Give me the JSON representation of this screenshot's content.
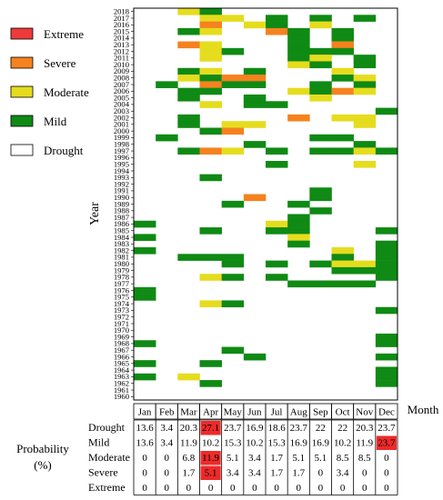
{
  "chart_data": {
    "type": "heatmap",
    "title": "",
    "xlabel": "Month",
    "ylabel": "Year",
    "months": [
      "Jan",
      "Feb",
      "Mar",
      "Apr",
      "May",
      "Jun",
      "Jul",
      "Aug",
      "Sep",
      "Oct",
      "Nov",
      "Dec"
    ],
    "year_range": [
      1960,
      2018
    ],
    "legend": [
      {
        "label": "Extreme",
        "color": "#ee3a3a"
      },
      {
        "label": "Severe",
        "color": "#f5821f"
      },
      {
        "label": "Moderate",
        "color": "#e6dc1e"
      },
      {
        "label": "Mild",
        "color": "#0f8a14"
      },
      {
        "label": "Drought",
        "color": "#ffffff"
      }
    ],
    "events": [
      {
        "year": 2018,
        "month": "Mar",
        "category": "Moderate"
      },
      {
        "year": 2018,
        "month": "Apr",
        "category": "Mild"
      },
      {
        "year": 2017,
        "month": "Apr",
        "category": "Moderate"
      },
      {
        "year": 2017,
        "month": "May",
        "category": "Moderate"
      },
      {
        "year": 2017,
        "month": "Jul",
        "category": "Mild"
      },
      {
        "year": 2017,
        "month": "Sep",
        "category": "Mild"
      },
      {
        "year": 2017,
        "month": "Nov",
        "category": "Mild"
      },
      {
        "year": 2016,
        "month": "Apr",
        "category": "Severe"
      },
      {
        "year": 2016,
        "month": "Jun",
        "category": "Moderate"
      },
      {
        "year": 2016,
        "month": "Jul",
        "category": "Mild"
      },
      {
        "year": 2016,
        "month": "Sep",
        "category": "Moderate"
      },
      {
        "year": 2015,
        "month": "Mar",
        "category": "Mild"
      },
      {
        "year": 2015,
        "month": "Apr",
        "category": "Moderate"
      },
      {
        "year": 2015,
        "month": "Jul",
        "category": "Severe"
      },
      {
        "year": 2015,
        "month": "Aug",
        "category": "Mild"
      },
      {
        "year": 2015,
        "month": "Oct",
        "category": "Mild"
      },
      {
        "year": 2014,
        "month": "Aug",
        "category": "Mild"
      },
      {
        "year": 2014,
        "month": "Oct",
        "category": "Mild"
      },
      {
        "year": 2013,
        "month": "Mar",
        "category": "Severe"
      },
      {
        "year": 2013,
        "month": "Apr",
        "category": "Moderate"
      },
      {
        "year": 2013,
        "month": "Aug",
        "category": "Mild"
      },
      {
        "year": 2013,
        "month": "Oct",
        "category": "Severe"
      },
      {
        "year": 2012,
        "month": "Apr",
        "category": "Moderate"
      },
      {
        "year": 2012,
        "month": "May",
        "category": "Mild"
      },
      {
        "year": 2012,
        "month": "Aug",
        "category": "Mild"
      },
      {
        "year": 2012,
        "month": "Sep",
        "category": "Mild"
      },
      {
        "year": 2012,
        "month": "Oct",
        "category": "Mild"
      },
      {
        "year": 2011,
        "month": "Apr",
        "category": "Moderate"
      },
      {
        "year": 2011,
        "month": "Aug",
        "category": "Mild"
      },
      {
        "year": 2011,
        "month": "Sep",
        "category": "Moderate"
      },
      {
        "year": 2011,
        "month": "Nov",
        "category": "Mild"
      },
      {
        "year": 2010,
        "month": "Aug",
        "category": "Moderate"
      },
      {
        "year": 2010,
        "month": "Sep",
        "category": "Mild"
      },
      {
        "year": 2010,
        "month": "Nov",
        "category": "Mild"
      },
      {
        "year": 2009,
        "month": "Mar",
        "category": "Mild"
      },
      {
        "year": 2009,
        "month": "Apr",
        "category": "Moderate"
      },
      {
        "year": 2009,
        "month": "Jun",
        "category": "Mild"
      },
      {
        "year": 2009,
        "month": "Oct",
        "category": "Moderate"
      },
      {
        "year": 2008,
        "month": "Mar",
        "category": "Moderate"
      },
      {
        "year": 2008,
        "month": "Apr",
        "category": "Mild"
      },
      {
        "year": 2008,
        "month": "May",
        "category": "Severe"
      },
      {
        "year": 2008,
        "month": "Jun",
        "category": "Severe"
      },
      {
        "year": 2008,
        "month": "Oct",
        "category": "Mild"
      },
      {
        "year": 2008,
        "month": "Nov",
        "category": "Moderate"
      },
      {
        "year": 2007,
        "month": "Feb",
        "category": "Mild"
      },
      {
        "year": 2007,
        "month": "Apr",
        "category": "Severe"
      },
      {
        "year": 2007,
        "month": "May",
        "category": "Mild"
      },
      {
        "year": 2007,
        "month": "Jun",
        "category": "Mild"
      },
      {
        "year": 2007,
        "month": "Sep",
        "category": "Mild"
      },
      {
        "year": 2007,
        "month": "Nov",
        "category": "Mild"
      },
      {
        "year": 2006,
        "month": "Mar",
        "category": "Mild"
      },
      {
        "year": 2006,
        "month": "Apr",
        "category": "Mild"
      },
      {
        "year": 2006,
        "month": "Aug",
        "category": "Moderate"
      },
      {
        "year": 2006,
        "month": "Sep",
        "category": "Mild"
      },
      {
        "year": 2006,
        "month": "Oct",
        "category": "Severe"
      },
      {
        "year": 2006,
        "month": "Nov",
        "category": "Moderate"
      },
      {
        "year": 2005,
        "month": "Mar",
        "category": "Mild"
      },
      {
        "year": 2005,
        "month": "Jun",
        "category": "Mild"
      },
      {
        "year": 2005,
        "month": "Sep",
        "category": "Moderate"
      },
      {
        "year": 2004,
        "month": "Apr",
        "category": "Moderate"
      },
      {
        "year": 2004,
        "month": "Jun",
        "category": "Mild"
      },
      {
        "year": 2004,
        "month": "Jul",
        "category": "Mild"
      },
      {
        "year": 2003,
        "month": "Dec",
        "category": "Mild"
      },
      {
        "year": 2002,
        "month": "Mar",
        "category": "Mild"
      },
      {
        "year": 2002,
        "month": "Aug",
        "category": "Severe"
      },
      {
        "year": 2002,
        "month": "Oct",
        "category": "Moderate"
      },
      {
        "year": 2002,
        "month": "Nov",
        "category": "Moderate"
      },
      {
        "year": 2001,
        "month": "Mar",
        "category": "Mild"
      },
      {
        "year": 2001,
        "month": "May",
        "category": "Moderate"
      },
      {
        "year": 2001,
        "month": "Jun",
        "category": "Moderate"
      },
      {
        "year": 2001,
        "month": "Nov",
        "category": "Moderate"
      },
      {
        "year": 2000,
        "month": "Apr",
        "category": "Mild"
      },
      {
        "year": 2000,
        "month": "May",
        "category": "Severe"
      },
      {
        "year": 1999,
        "month": "Feb",
        "category": "Mild"
      },
      {
        "year": 1999,
        "month": "Sep",
        "category": "Mild"
      },
      {
        "year": 1999,
        "month": "Oct",
        "category": "Mild"
      },
      {
        "year": 1998,
        "month": "Jun",
        "category": "Mild"
      },
      {
        "year": 1998,
        "month": "Nov",
        "category": "Mild"
      },
      {
        "year": 1997,
        "month": "Mar",
        "category": "Mild"
      },
      {
        "year": 1997,
        "month": "Apr",
        "category": "Severe"
      },
      {
        "year": 1997,
        "month": "May",
        "category": "Moderate"
      },
      {
        "year": 1997,
        "month": "Jul",
        "category": "Mild"
      },
      {
        "year": 1997,
        "month": "Sep",
        "category": "Mild"
      },
      {
        "year": 1997,
        "month": "Oct",
        "category": "Mild"
      },
      {
        "year": 1997,
        "month": "Nov",
        "category": "Moderate"
      },
      {
        "year": 1997,
        "month": "Dec",
        "category": "Mild"
      },
      {
        "year": 1995,
        "month": "Jul",
        "category": "Mild"
      },
      {
        "year": 1995,
        "month": "Nov",
        "category": "Moderate"
      },
      {
        "year": 1993,
        "month": "Apr",
        "category": "Mild"
      },
      {
        "year": 1991,
        "month": "Sep",
        "category": "Mild"
      },
      {
        "year": 1990,
        "month": "Jun",
        "category": "Severe"
      },
      {
        "year": 1990,
        "month": "Sep",
        "category": "Mild"
      },
      {
        "year": 1989,
        "month": "May",
        "category": "Mild"
      },
      {
        "year": 1989,
        "month": "Aug",
        "category": "Mild"
      },
      {
        "year": 1988,
        "month": "Sep",
        "category": "Mild"
      },
      {
        "year": 1987,
        "month": "Aug",
        "category": "Mild"
      },
      {
        "year": 1986,
        "month": "Jan",
        "category": "Mild"
      },
      {
        "year": 1986,
        "month": "Jul",
        "category": "Moderate"
      },
      {
        "year": 1986,
        "month": "Aug",
        "category": "Mild"
      },
      {
        "year": 1985,
        "month": "Apr",
        "category": "Mild"
      },
      {
        "year": 1985,
        "month": "Jul",
        "category": "Mild"
      },
      {
        "year": 1985,
        "month": "Aug",
        "category": "Mild"
      },
      {
        "year": 1985,
        "month": "Dec",
        "category": "Mild"
      },
      {
        "year": 1984,
        "month": "Jan",
        "category": "Mild"
      },
      {
        "year": 1984,
        "month": "Aug",
        "category": "Moderate"
      },
      {
        "year": 1983,
        "month": "Aug",
        "category": "Mild"
      },
      {
        "year": 1983,
        "month": "Dec",
        "category": "Mild"
      },
      {
        "year": 1982,
        "month": "Jan",
        "category": "Mild"
      },
      {
        "year": 1982,
        "month": "Oct",
        "category": "Moderate"
      },
      {
        "year": 1982,
        "month": "Dec",
        "category": "Mild"
      },
      {
        "year": 1981,
        "month": "Mar",
        "category": "Mild"
      },
      {
        "year": 1981,
        "month": "Apr",
        "category": "Mild"
      },
      {
        "year": 1981,
        "month": "May",
        "category": "Mild"
      },
      {
        "year": 1981,
        "month": "Oct",
        "category": "Mild"
      },
      {
        "year": 1981,
        "month": "Dec",
        "category": "Mild"
      },
      {
        "year": 1980,
        "month": "May",
        "category": "Mild"
      },
      {
        "year": 1980,
        "month": "Jul",
        "category": "Mild"
      },
      {
        "year": 1980,
        "month": "Sep",
        "category": "Mild"
      },
      {
        "year": 1980,
        "month": "Oct",
        "category": "Moderate"
      },
      {
        "year": 1980,
        "month": "Nov",
        "category": "Moderate"
      },
      {
        "year": 1980,
        "month": "Dec",
        "category": "Mild"
      },
      {
        "year": 1979,
        "month": "Oct",
        "category": "Mild"
      },
      {
        "year": 1979,
        "month": "Nov",
        "category": "Mild"
      },
      {
        "year": 1979,
        "month": "Dec",
        "category": "Mild"
      },
      {
        "year": 1978,
        "month": "Apr",
        "category": "Moderate"
      },
      {
        "year": 1978,
        "month": "May",
        "category": "Mild"
      },
      {
        "year": 1978,
        "month": "Jul",
        "category": "Mild"
      },
      {
        "year": 1978,
        "month": "Dec",
        "category": "Mild"
      },
      {
        "year": 1977,
        "month": "Aug",
        "category": "Mild"
      },
      {
        "year": 1977,
        "month": "Sep",
        "category": "Mild"
      },
      {
        "year": 1977,
        "month": "Oct",
        "category": "Mild"
      },
      {
        "year": 1977,
        "month": "Nov",
        "category": "Mild"
      },
      {
        "year": 1976,
        "month": "Jan",
        "category": "Mild"
      },
      {
        "year": 1975,
        "month": "Jan",
        "category": "Mild"
      },
      {
        "year": 1974,
        "month": "Apr",
        "category": "Moderate"
      },
      {
        "year": 1974,
        "month": "May",
        "category": "Mild"
      },
      {
        "year": 1973,
        "month": "Dec",
        "category": "Mild"
      },
      {
        "year": 1969,
        "month": "Dec",
        "category": "Mild"
      },
      {
        "year": 1968,
        "month": "Jan",
        "category": "Mild"
      },
      {
        "year": 1968,
        "month": "Dec",
        "category": "Mild"
      },
      {
        "year": 1967,
        "month": "May",
        "category": "Mild"
      },
      {
        "year": 1966,
        "month": "Jun",
        "category": "Mild"
      },
      {
        "year": 1966,
        "month": "Dec",
        "category": "Mild"
      },
      {
        "year": 1965,
        "month": "Jan",
        "category": "Mild"
      },
      {
        "year": 1965,
        "month": "Apr",
        "category": "Mild"
      },
      {
        "year": 1964,
        "month": "Dec",
        "category": "Mild"
      },
      {
        "year": 1963,
        "month": "Jan",
        "category": "Mild"
      },
      {
        "year": 1963,
        "month": "Mar",
        "category": "Moderate"
      },
      {
        "year": 1963,
        "month": "Dec",
        "category": "Mild"
      },
      {
        "year": 1962,
        "month": "Apr",
        "category": "Mild"
      },
      {
        "year": 1962,
        "month": "Dec",
        "category": "Mild"
      }
    ],
    "probability_table": {
      "label": "Probability (%)",
      "rows": [
        {
          "name": "Drought",
          "values": [
            13.6,
            3.4,
            20.3,
            27.1,
            23.7,
            16.9,
            18.6,
            23.7,
            22,
            22,
            20.3,
            23.7
          ]
        },
        {
          "name": "Mild",
          "values": [
            13.6,
            3.4,
            11.9,
            10.2,
            15.3,
            10.2,
            15.3,
            16.9,
            16.9,
            10.2,
            11.9,
            23.7
          ]
        },
        {
          "name": "Moderate",
          "values": [
            0,
            0,
            6.8,
            11.9,
            5.1,
            3.4,
            1.7,
            5.1,
            5.1,
            8.5,
            8.5,
            0
          ]
        },
        {
          "name": "Severe",
          "values": [
            0,
            0,
            1.7,
            5.1,
            3.4,
            3.4,
            1.7,
            1.7,
            0,
            3.4,
            0,
            0
          ]
        },
        {
          "name": "Extreme",
          "values": [
            0,
            0,
            0,
            0,
            0,
            0,
            0,
            0,
            0,
            0,
            0,
            0
          ]
        }
      ],
      "highlighted_cells": [
        {
          "row": "Drought",
          "month": "Apr"
        },
        {
          "row": "Mild",
          "month": "Dec"
        },
        {
          "row": "Moderate",
          "month": "Apr"
        },
        {
          "row": "Severe",
          "month": "Apr"
        }
      ],
      "highlight_color": "#ee2a2a"
    }
  }
}
